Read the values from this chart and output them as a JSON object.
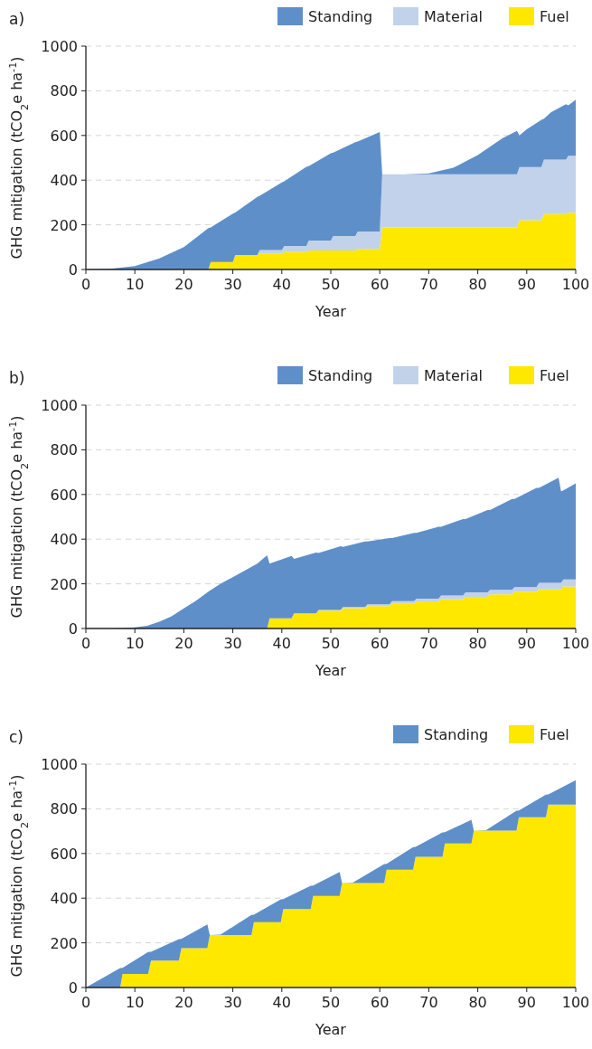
{
  "chart_data": [
    {
      "type": "area",
      "title": "a)",
      "xlabel": "Year",
      "ylabel": "GHG mitigation (tCO$_{2}$e ha$^{-1}$)",
      "stacked": true,
      "legend": "top right",
      "grid": "y",
      "xlim": [
        0,
        100
      ],
      "ylim": [
        0,
        1000
      ],
      "xticks": [
        0,
        10,
        20,
        30,
        40,
        50,
        60,
        70,
        80,
        90,
        100
      ],
      "yticks": [
        0,
        200,
        400,
        600,
        800,
        1000
      ],
      "x": [
        0,
        5,
        10,
        15,
        20,
        25,
        25.5,
        30,
        30.5,
        35,
        35.5,
        40,
        40.5,
        45,
        45.5,
        50,
        50.5,
        55,
        55.5,
        60,
        60.5,
        65,
        70,
        75,
        80,
        85,
        88,
        88.5,
        90,
        93,
        93.5,
        95,
        98,
        98.5,
        100
      ],
      "series": [
        {
          "name": "Fuel",
          "color": "#ffe800",
          "values": [
            0,
            0,
            0,
            0,
            0,
            0,
            33,
            33,
            65,
            65,
            72,
            72,
            78,
            78,
            85,
            85,
            85,
            85,
            92,
            92,
            188,
            188,
            188,
            188,
            188,
            188,
            188,
            221,
            221,
            221,
            248,
            248,
            248,
            254,
            254
          ]
        },
        {
          "name": "Material",
          "color": "#c2d2ea",
          "values": [
            0,
            0,
            0,
            0,
            0,
            0,
            0,
            0,
            0,
            0,
            15,
            15,
            27,
            27,
            45,
            45,
            65,
            65,
            78,
            78,
            238,
            238,
            238,
            238,
            238,
            238,
            238,
            238,
            238,
            238,
            244,
            244,
            244,
            255,
            255
          ]
        },
        {
          "name": "Standing",
          "color": "#5f8fc9",
          "values": [
            0,
            3,
            15,
            50,
            100,
            185,
            155,
            217,
            190,
            260,
            243,
            303,
            290,
            355,
            333,
            390,
            373,
            420,
            403,
            445,
            0,
            0,
            4,
            29,
            86,
            161,
            194,
            141,
            169,
            211,
            183,
            212,
            248,
            226,
            251
          ]
        }
      ]
    },
    {
      "type": "area",
      "title": "b)",
      "xlabel": "Year",
      "ylabel": "GHG mitigation (tCO$_{2}$e ha$^{-1}$)",
      "stacked": true,
      "legend": "top right",
      "grid": "y",
      "xlim": [
        0,
        100
      ],
      "ylim": [
        0,
        1000
      ],
      "xticks": [
        0,
        10,
        20,
        30,
        40,
        50,
        60,
        70,
        80,
        90,
        100
      ],
      "yticks": [
        0,
        200,
        400,
        600,
        800,
        1000
      ],
      "x": [
        0,
        5,
        7.5,
        10,
        12.5,
        15,
        17.5,
        20,
        22.5,
        25,
        27.5,
        30,
        32.5,
        35,
        37,
        37.5,
        42,
        42.5,
        47,
        47.5,
        52,
        52.5,
        57,
        57.5,
        62,
        62.5,
        67,
        67.5,
        72,
        72.5,
        77,
        77.5,
        82,
        82.5,
        87,
        87.5,
        92,
        92.5,
        96.5,
        97,
        97.5,
        100
      ],
      "series": [
        {
          "name": "Fuel",
          "color": "#ffe800",
          "values": [
            0,
            0,
            0,
            0,
            0,
            0,
            0,
            0,
            0,
            0,
            0,
            0,
            0,
            0,
            0,
            46,
            46,
            68,
            68,
            80,
            80,
            91,
            91,
            100,
            100,
            110,
            110,
            121,
            121,
            131,
            131,
            142,
            142,
            153,
            153,
            165,
            165,
            175,
            175,
            175,
            188,
            188
          ]
        },
        {
          "name": "Material",
          "color": "#c2d2ea",
          "values": [
            0,
            0,
            0,
            0,
            0,
            0,
            0,
            0,
            0,
            0,
            0,
            0,
            0,
            0,
            0,
            0,
            0,
            0,
            0,
            3,
            3,
            5,
            5,
            8,
            8,
            12,
            12,
            13,
            13,
            17,
            17,
            20,
            20,
            20,
            20,
            20,
            20,
            29,
            29,
            29,
            32,
            32
          ]
        },
        {
          "name": "Standing",
          "color": "#5f8fc9",
          "values": [
            0,
            0,
            2,
            5,
            12,
            30,
            55,
            90,
            125,
            165,
            200,
            230,
            260,
            290,
            328,
            244,
            279,
            244,
            272,
            255,
            285,
            269,
            294,
            282,
            297,
            283,
            306,
            294,
            321,
            307,
            342,
            328,
            368,
            357,
            407,
            395,
            445,
            426,
            471,
            410,
            398,
            430
          ]
        }
      ]
    },
    {
      "type": "area",
      "title": "c)",
      "xlabel": "Year",
      "ylabel": "GHG mitigation (tCO$_{2}$e ha$^{-1}$)",
      "stacked": true,
      "legend": "top right",
      "grid": "y",
      "xlim": [
        0,
        100
      ],
      "ylim": [
        0,
        1000
      ],
      "xticks": [
        0,
        10,
        20,
        30,
        40,
        50,
        60,
        70,
        80,
        90,
        100
      ],
      "yticks": [
        0,
        200,
        400,
        600,
        800,
        1000
      ],
      "x": [
        0,
        7,
        7.5,
        12.7,
        13.3,
        19,
        19.5,
        24.8,
        25.3,
        27.5,
        33.8,
        34.3,
        39.8,
        40.3,
        45.9,
        46.4,
        51.8,
        52.3,
        54.5,
        60.9,
        61.4,
        66.8,
        67.3,
        72.8,
        73.3,
        78.7,
        79.2,
        81.7,
        87.9,
        88.4,
        93.9,
        94.4,
        100
      ],
      "series": [
        {
          "name": "Fuel",
          "color": "#ffe800",
          "values": [
            0,
            0,
            61,
            61,
            120,
            120,
            176,
            176,
            235,
            235,
            235,
            293,
            293,
            351,
            351,
            410,
            410,
            468,
            468,
            468,
            527,
            527,
            585,
            585,
            645,
            645,
            702,
            702,
            702,
            762,
            762,
            819,
            819
          ]
        },
        {
          "name": "Standing",
          "color": "#5f8fc9",
          "values": [
            0,
            87,
            27,
            98,
            40,
            97,
            42,
            106,
            0,
            2,
            90,
            33,
            102,
            45,
            104,
            46,
            107,
            0,
            2,
            85,
            27,
            102,
            45,
            109,
            50,
            106,
            0,
            2,
            90,
            31,
            101,
            45,
            109
          ]
        }
      ]
    }
  ]
}
